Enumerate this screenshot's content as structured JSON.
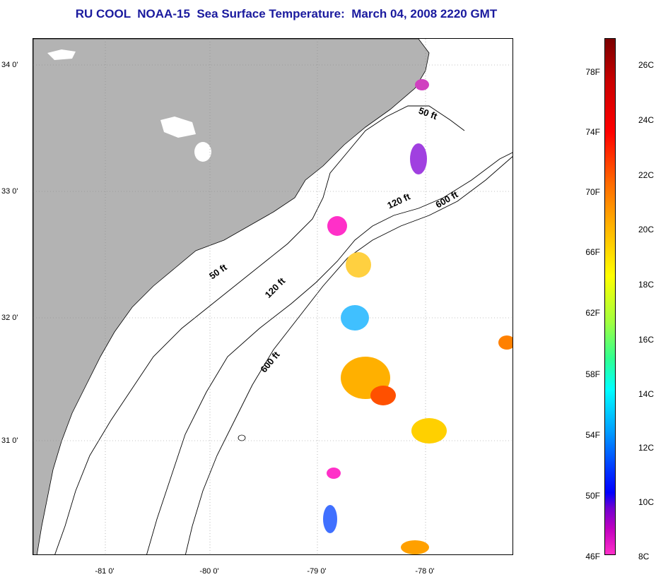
{
  "title": "RU COOL  NOAA-15  Sea Surface Temperature:  March 04, 2008 2220 GMT",
  "map": {
    "lat_labels": [
      "34 0'",
      "33 0'",
      "32 0'",
      "31 0'"
    ],
    "lon_labels": [
      "-81 0'",
      "-80 0'",
      "-79 0'",
      "-78 0'"
    ],
    "contour_labels": [
      "50 ft",
      "120 ft",
      "600 ft",
      "50 ft",
      "120 ft",
      "600 ft"
    ],
    "colors": {
      "land": "#b3b3b3",
      "water": "#ffffff",
      "contour": "#000000",
      "grid": "#888888"
    }
  },
  "colorbar": {
    "fahrenheit_labels": [
      "78F",
      "74F",
      "70F",
      "66F",
      "62F",
      "58F",
      "54F",
      "50F",
      "46F"
    ],
    "celsius_labels": [
      "26C",
      "24C",
      "22C",
      "20C",
      "18C",
      "16C",
      "14C",
      "12C",
      "10C",
      "8C"
    ]
  }
}
